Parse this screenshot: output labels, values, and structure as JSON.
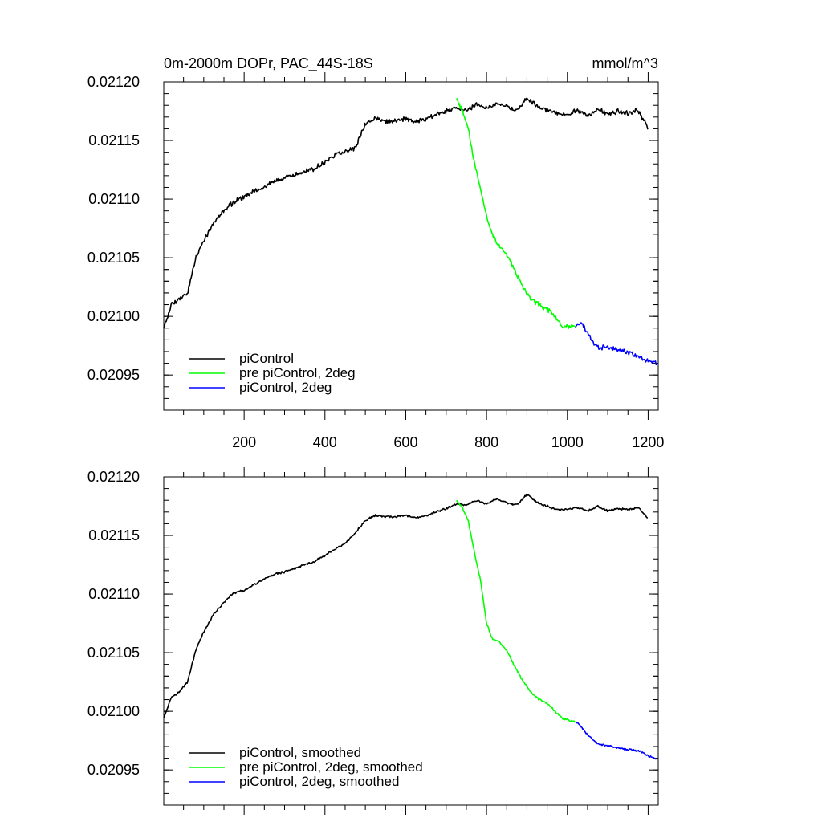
{
  "chart_data": [
    {
      "type": "line",
      "title": "0m-2000m DOPr, PAC_44S-18S",
      "units": "mmol/m^3",
      "xlim": [
        1,
        1225
      ],
      "ylim": [
        0.02092,
        0.0212
      ],
      "x_ticks": [
        200,
        400,
        600,
        800,
        1000,
        1200
      ],
      "x_tick_labels": [
        "200",
        "400",
        "600",
        "800",
        "1000",
        "1200"
      ],
      "y_ticks": [
        0.02095,
        0.021,
        0.02105,
        0.0211,
        0.02115,
        0.0212
      ],
      "y_tick_labels": [
        "0.02095",
        "0.02100",
        "0.02105",
        "0.02110",
        "0.02115",
        "0.02120"
      ],
      "grid": false,
      "legend_position": "bottom-left",
      "series": [
        {
          "name": "piControl",
          "color": "#000000",
          "x": [
            1,
            20,
            40,
            60,
            80,
            100,
            125,
            150,
            175,
            200,
            225,
            250,
            275,
            300,
            325,
            350,
            375,
            400,
            425,
            450,
            475,
            500,
            525,
            550,
            575,
            600,
            625,
            650,
            675,
            700,
            725,
            750,
            775,
            800,
            825,
            850,
            875,
            900,
            925,
            950,
            975,
            1000,
            1025,
            1050,
            1075,
            1100,
            1125,
            1150,
            1175,
            1200
          ],
          "y": [
            0.02099,
            0.02101,
            0.021015,
            0.02102,
            0.02105,
            0.021065,
            0.02108,
            0.02109,
            0.021098,
            0.021102,
            0.021107,
            0.02111,
            0.021115,
            0.021118,
            0.02112,
            0.021124,
            0.021126,
            0.021132,
            0.021137,
            0.021141,
            0.021144,
            0.021164,
            0.021169,
            0.021166,
            0.021167,
            0.021168,
            0.021166,
            0.021168,
            0.021172,
            0.021175,
            0.021178,
            0.021175,
            0.021181,
            0.021178,
            0.021182,
            0.021179,
            0.021175,
            0.021186,
            0.021179,
            0.021176,
            0.021173,
            0.021172,
            0.021176,
            0.021171,
            0.021177,
            0.021172,
            0.021175,
            0.021173,
            0.021176,
            0.02116
          ]
        },
        {
          "name": "pre piControl, 2deg",
          "color": "#00ff00",
          "x": [
            725,
            740,
            755,
            770,
            785,
            800,
            815,
            830,
            850,
            870,
            890,
            910,
            930,
            950,
            970,
            990,
            1010,
            1020
          ],
          "y": [
            0.021185,
            0.021175,
            0.02116,
            0.02113,
            0.02111,
            0.021085,
            0.02107,
            0.02106,
            0.021052,
            0.02104,
            0.021025,
            0.021015,
            0.02101,
            0.021006,
            0.021001,
            0.02099,
            0.020992,
            0.020991
          ]
        },
        {
          "name": "piControl, 2deg",
          "color": "#0000ff",
          "x": [
            1020,
            1035,
            1050,
            1065,
            1080,
            1100,
            1120,
            1140,
            1160,
            1180,
            1200,
            1220
          ],
          "y": [
            0.020991,
            0.020995,
            0.020985,
            0.020978,
            0.020973,
            0.020974,
            0.020972,
            0.02097,
            0.020968,
            0.020965,
            0.020962,
            0.02096
          ]
        }
      ]
    },
    {
      "type": "line",
      "xlim": [
        1,
        1225
      ],
      "ylim": [
        0.02092,
        0.0212
      ],
      "x_ticks": [
        200,
        400,
        600,
        800,
        1000,
        1200
      ],
      "y_ticks": [
        0.02095,
        0.021,
        0.02105,
        0.0211,
        0.02115,
        0.0212
      ],
      "y_tick_labels": [
        "0.02095",
        "0.02100",
        "0.02105",
        "0.02110",
        "0.02115",
        "0.02120"
      ],
      "grid": false,
      "legend_position": "bottom-left",
      "series": [
        {
          "name": "piControl, smoothed",
          "color": "#000000",
          "x": [
            1,
            20,
            40,
            60,
            80,
            100,
            125,
            150,
            175,
            200,
            225,
            250,
            275,
            300,
            325,
            350,
            375,
            400,
            425,
            450,
            475,
            500,
            525,
            550,
            575,
            600,
            625,
            650,
            675,
            700,
            725,
            750,
            775,
            800,
            825,
            850,
            875,
            900,
            925,
            950,
            975,
            1000,
            1025,
            1050,
            1075,
            1100,
            1125,
            1150,
            1175,
            1200
          ],
          "y": [
            0.020994,
            0.021012,
            0.021017,
            0.021025,
            0.021052,
            0.021068,
            0.021083,
            0.021093,
            0.021101,
            0.021103,
            0.021108,
            0.021113,
            0.021117,
            0.021119,
            0.021122,
            0.021125,
            0.021128,
            0.021133,
            0.021138,
            0.021143,
            0.021152,
            0.021163,
            0.021167,
            0.021166,
            0.021166,
            0.021167,
            0.021165,
            0.021167,
            0.02117,
            0.021173,
            0.021177,
            0.021176,
            0.02118,
            0.021177,
            0.021181,
            0.021178,
            0.021176,
            0.021185,
            0.021178,
            0.021175,
            0.021172,
            0.021172,
            0.021174,
            0.021171,
            0.021175,
            0.021171,
            0.021173,
            0.021172,
            0.021174,
            0.021165
          ]
        },
        {
          "name": "pre piControl, 2deg, smoothed",
          "color": "#00ff00",
          "x": [
            725,
            740,
            755,
            770,
            785,
            800,
            815,
            830,
            850,
            870,
            890,
            910,
            930,
            950,
            970,
            990,
            1010,
            1020
          ],
          "y": [
            0.02118,
            0.021174,
            0.021162,
            0.021135,
            0.021112,
            0.021075,
            0.021061,
            0.02106,
            0.021052,
            0.021038,
            0.021026,
            0.021016,
            0.02101,
            0.021007,
            0.021,
            0.020993,
            0.020992,
            0.020991
          ]
        },
        {
          "name": "piControl, 2deg, smoothed",
          "color": "#0000ff",
          "x": [
            1020,
            1035,
            1050,
            1065,
            1080,
            1100,
            1120,
            1140,
            1160,
            1180,
            1200,
            1220
          ],
          "y": [
            0.020991,
            0.020987,
            0.02098,
            0.020975,
            0.020972,
            0.020971,
            0.020969,
            0.020968,
            0.020967,
            0.020966,
            0.020962,
            0.020959
          ]
        }
      ]
    }
  ]
}
